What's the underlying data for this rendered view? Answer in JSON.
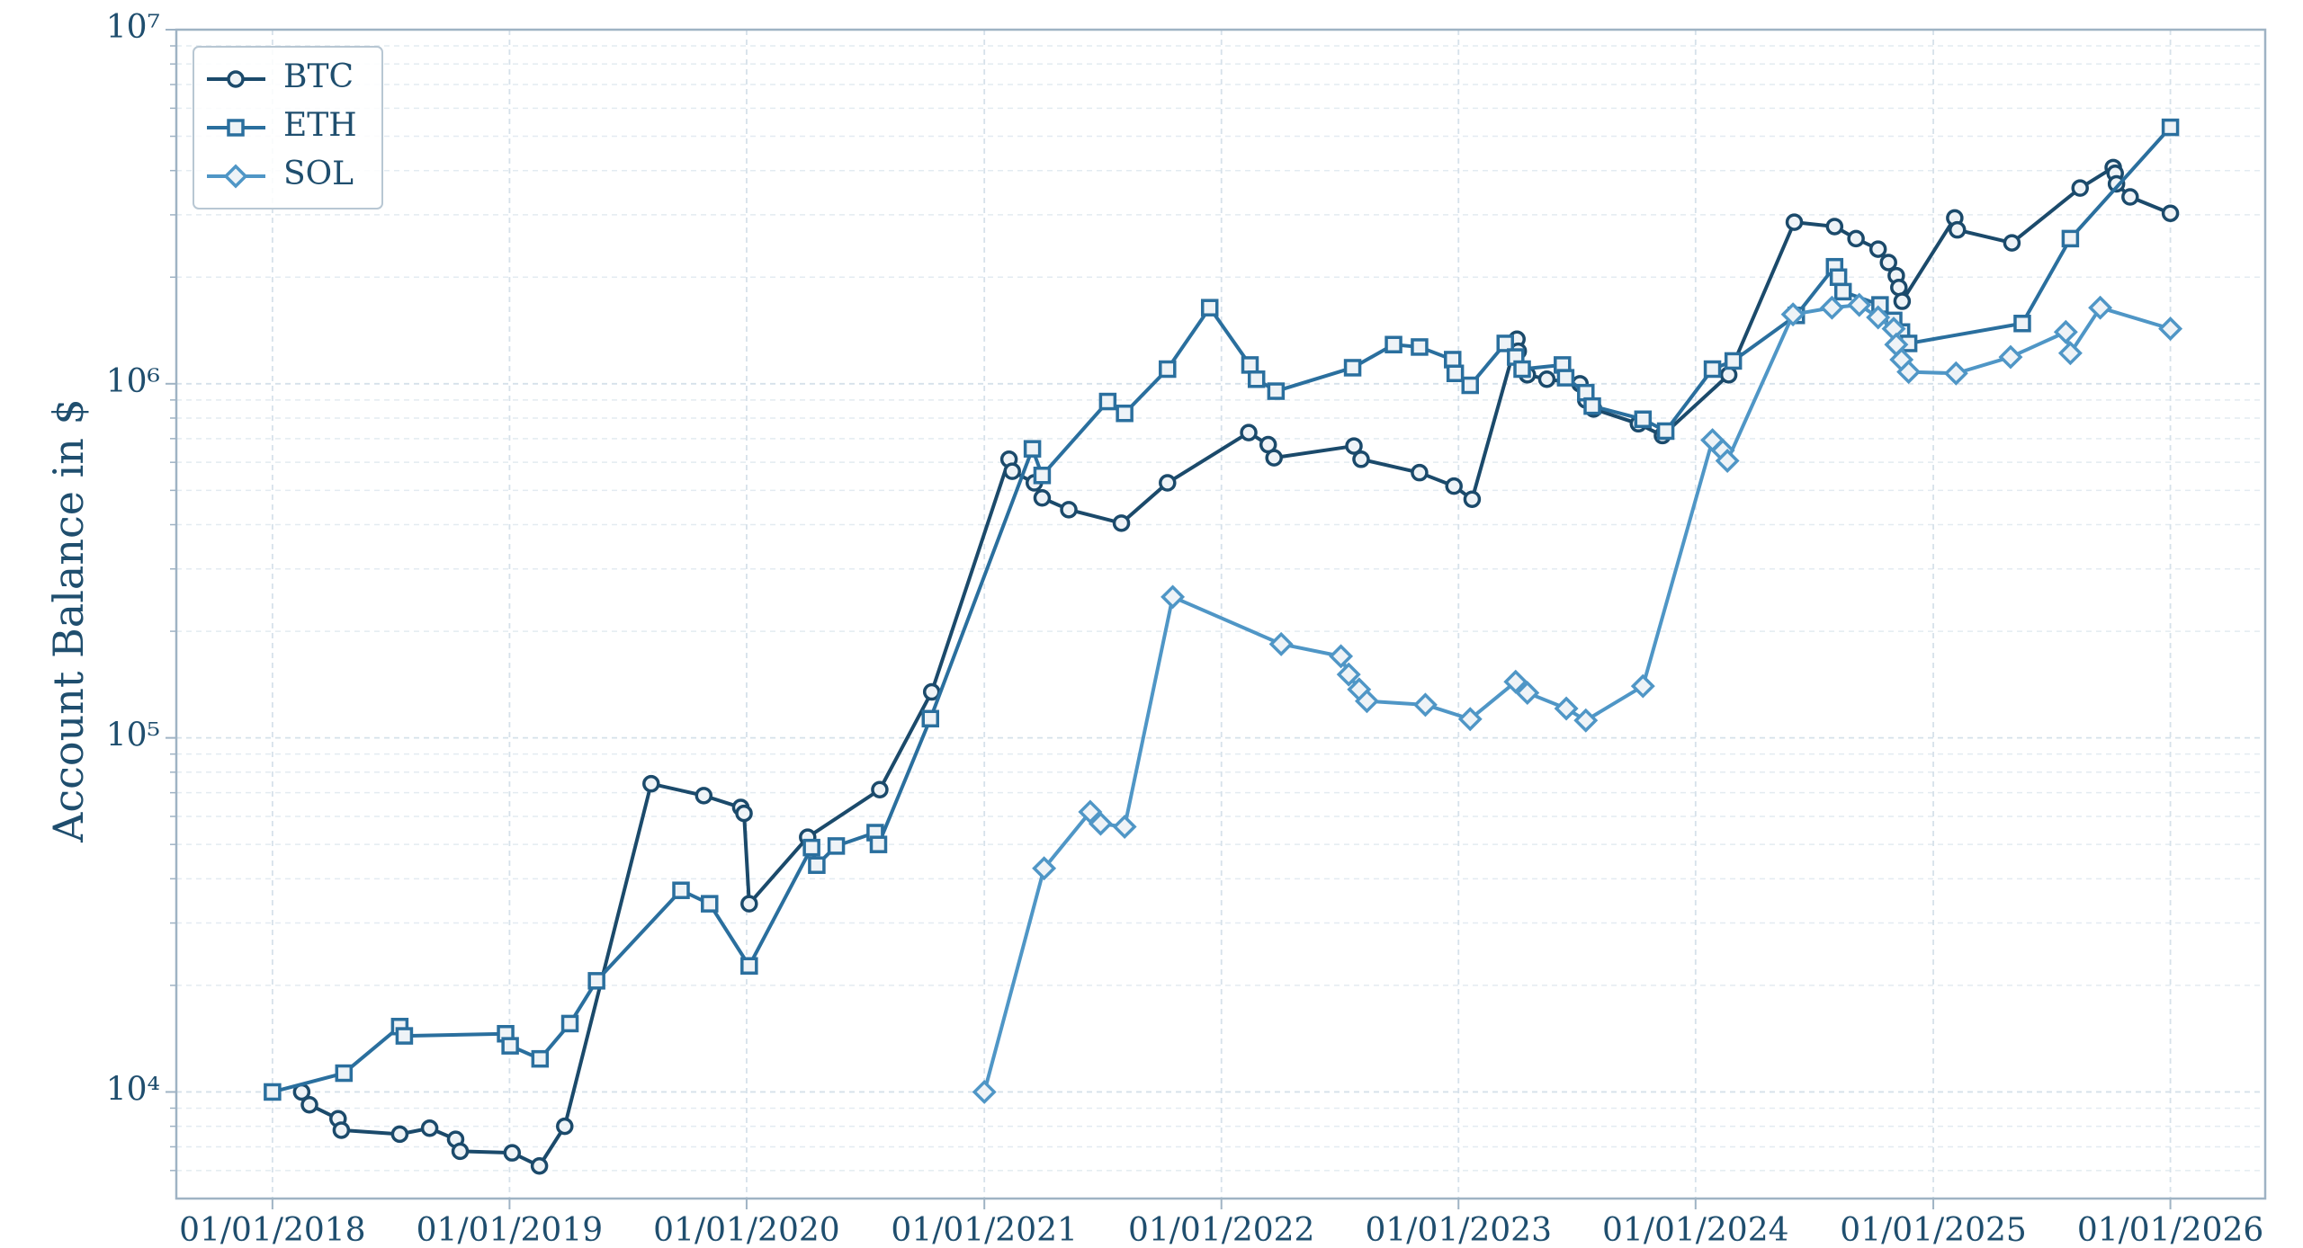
{
  "chart_data": {
    "type": "line",
    "y_label": "Account Balance in $",
    "log_y": true,
    "grid": true,
    "legend_position": "upper-left",
    "xlim": [
      "2017-08-06",
      "2026-05-27"
    ],
    "xticks": [
      {
        "value": "2018-01-01",
        "label": "01/01/2018"
      },
      {
        "value": "2019-01-01",
        "label": "01/01/2019"
      },
      {
        "value": "2020-01-01",
        "label": "01/01/2020"
      },
      {
        "value": "2021-01-01",
        "label": "01/01/2021"
      },
      {
        "value": "2022-01-01",
        "label": "01/01/2022"
      },
      {
        "value": "2023-01-01",
        "label": "01/01/2023"
      },
      {
        "value": "2024-01-01",
        "label": "01/01/2024"
      },
      {
        "value": "2025-01-01",
        "label": "01/01/2025"
      },
      {
        "value": "2026-01-01",
        "label": "01/01/2026"
      }
    ],
    "ylim": [
      5000,
      10000000
    ],
    "yticks": [
      {
        "value": 10000,
        "label": "10⁴"
      },
      {
        "value": 100000,
        "label": "10⁵"
      },
      {
        "value": 1000000,
        "label": "10⁶"
      },
      {
        "value": 10000000,
        "label": "10⁷"
      }
    ],
    "yticks_minor": [
      6000,
      7000,
      8000,
      9000,
      20000,
      30000,
      40000,
      50000,
      60000,
      70000,
      80000,
      90000,
      200000,
      300000,
      400000,
      500000,
      600000,
      700000,
      800000,
      900000,
      2000000,
      3000000,
      4000000,
      5000000,
      6000000,
      7000000,
      8000000,
      9000000
    ],
    "series": [
      {
        "name": "BTC",
        "color": "#1b4a6b",
        "marker": "circle",
        "x": [
          "2018-02-15",
          "2018-02-27",
          "2018-04-12",
          "2018-04-17",
          "2018-07-16",
          "2018-08-31",
          "2018-10-10",
          "2018-10-17",
          "2019-01-05",
          "2019-02-16",
          "2019-03-27",
          "2019-08-07",
          "2019-10-27",
          "2019-12-23",
          "2019-12-28",
          "2020-01-05",
          "2020-04-04",
          "2020-07-24",
          "2020-10-12",
          "2021-02-08",
          "2021-02-13",
          "2021-03-19",
          "2021-03-31",
          "2021-05-11",
          "2021-07-31",
          "2021-10-10",
          "2022-02-12",
          "2022-03-14",
          "2022-03-23",
          "2022-07-24",
          "2022-08-04",
          "2022-11-02",
          "2022-12-25",
          "2023-01-22",
          "2023-04-01",
          "2023-04-03",
          "2023-04-17",
          "2023-05-17",
          "2023-07-07",
          "2023-07-16",
          "2023-07-28",
          "2023-10-05",
          "2023-11-11",
          "2024-02-21",
          "2024-06-01",
          "2024-08-02",
          "2024-09-04",
          "2024-10-08",
          "2024-10-24",
          "2024-11-05",
          "2024-11-09",
          "2024-11-14",
          "2025-02-03",
          "2025-02-07",
          "2025-05-02",
          "2025-08-15",
          "2025-10-05",
          "2025-10-08",
          "2025-10-10",
          "2025-10-31",
          "2026-01-01"
        ],
        "values": [
          10000,
          9200,
          8400,
          7800,
          7600,
          7900,
          7350,
          6800,
          6730,
          6180,
          8000,
          74200,
          68700,
          63600,
          61200,
          34000,
          52400,
          71400,
          134800,
          612000,
          566000,
          525000,
          476000,
          441000,
          404000,
          525000,
          728000,
          673000,
          618000,
          667000,
          612000,
          561000,
          514000,
          472000,
          1336000,
          1236000,
          1060000,
          1030000,
          1000000,
          900000,
          849000,
          771000,
          714000,
          1060000,
          2860000,
          2780000,
          2570000,
          2400000,
          2200000,
          2020000,
          1870000,
          1710000,
          2940000,
          2720000,
          2500000,
          3570000,
          4080000,
          3930000,
          3670000,
          3370000,
          3030000
        ]
      },
      {
        "name": "ETH",
        "color": "#2a6f9e",
        "marker": "square",
        "x": [
          "2018-01-01",
          "2018-04-21",
          "2018-07-16",
          "2018-07-23",
          "2018-12-26",
          "2019-01-02",
          "2019-02-17",
          "2019-04-04",
          "2019-05-15",
          "2019-09-22",
          "2019-11-05",
          "2020-01-05",
          "2020-04-10",
          "2020-04-18",
          "2020-05-18",
          "2020-07-17",
          "2020-07-22",
          "2020-10-10",
          "2021-03-16",
          "2021-03-31",
          "2021-07-10",
          "2021-08-05",
          "2021-10-10",
          "2021-12-14",
          "2022-02-14",
          "2022-02-24",
          "2022-03-26",
          "2022-07-22",
          "2022-09-23",
          "2022-11-02",
          "2022-12-23",
          "2022-12-27",
          "2023-01-19",
          "2023-03-14",
          "2023-03-30",
          "2023-04-09",
          "2023-06-10",
          "2023-06-15",
          "2023-07-16",
          "2023-07-26",
          "2023-10-12",
          "2023-11-16",
          "2024-01-27",
          "2024-02-28",
          "2024-06-04",
          "2024-08-02",
          "2024-08-08",
          "2024-08-15",
          "2024-10-11",
          "2024-11-01",
          "2024-11-13",
          "2024-11-24",
          "2025-05-18",
          "2025-07-31",
          "2026-01-01"
        ],
        "values": [
          10000,
          11300,
          15300,
          14400,
          14600,
          13500,
          12400,
          15600,
          20600,
          37100,
          34000,
          22700,
          49000,
          43700,
          49500,
          54000,
          50000,
          113300,
          655000,
          551000,
          891000,
          825000,
          1100000,
          1640000,
          1130000,
          1030000,
          953000,
          1110000,
          1290000,
          1270000,
          1170000,
          1070000,
          990000,
          1300000,
          1190000,
          1100000,
          1130000,
          1040000,
          944000,
          865000,
          794000,
          735000,
          1100000,
          1160000,
          1560000,
          2140000,
          2000000,
          1820000,
          1670000,
          1510000,
          1400000,
          1300000,
          1480000,
          2570000,
          5300000
        ]
      },
      {
        "name": "SOL",
        "color": "#4f96c6",
        "marker": "diamond",
        "x": [
          "2021-01-01",
          "2021-04-03",
          "2021-06-13",
          "2021-06-29",
          "2021-08-05",
          "2021-10-18",
          "2022-04-03",
          "2022-07-04",
          "2022-07-16",
          "2022-08-01",
          "2022-08-13",
          "2022-11-11",
          "2023-01-19",
          "2023-03-30",
          "2023-04-17",
          "2023-06-16",
          "2023-07-16",
          "2023-10-12",
          "2024-01-27",
          "2024-02-12",
          "2024-02-19",
          "2024-05-30",
          "2024-07-29",
          "2024-09-09",
          "2024-10-08",
          "2024-11-01",
          "2024-11-05",
          "2024-11-13",
          "2024-11-24",
          "2025-02-05",
          "2025-04-30",
          "2025-07-24",
          "2025-07-31",
          "2025-09-15",
          "2026-01-01"
        ],
        "values": [
          10000,
          42800,
          61800,
          57200,
          56100,
          250000,
          184000,
          170000,
          151000,
          137000,
          127000,
          124000,
          113000,
          144000,
          134000,
          121000,
          112000,
          140000,
          693000,
          648000,
          606000,
          1570000,
          1640000,
          1670000,
          1540000,
          1430000,
          1290000,
          1170000,
          1080000,
          1070000,
          1190000,
          1400000,
          1220000,
          1640000,
          1430000
        ]
      }
    ]
  }
}
